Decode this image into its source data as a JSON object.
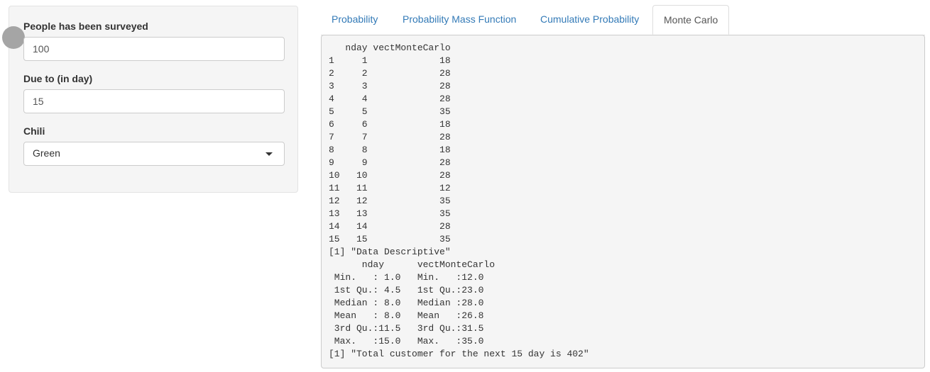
{
  "sidebar": {
    "people_label": "People has been surveyed",
    "people_value": "100",
    "due_label": "Due to (in day)",
    "due_value": "15",
    "chili_label": "Chili",
    "chili_selected": "Green"
  },
  "tabs": [
    {
      "label": "Probability",
      "active": false
    },
    {
      "label": "Probability Mass Function",
      "active": false
    },
    {
      "label": "Cumulative Probability",
      "active": false
    },
    {
      "label": "Monte Carlo",
      "active": true
    }
  ],
  "output": {
    "lines": [
      "   nday vectMonteCarlo",
      "1     1             18",
      "2     2             28",
      "3     3             28",
      "4     4             28",
      "5     5             35",
      "6     6             18",
      "7     7             28",
      "8     8             18",
      "9     9             28",
      "10   10             28",
      "11   11             12",
      "12   12             35",
      "13   13             35",
      "14   14             28",
      "15   15             35",
      "[1] \"Data Descriptive\"",
      "      nday      vectMonteCarlo",
      " Min.   : 1.0   Min.   :12.0  ",
      " 1st Qu.: 4.5   1st Qu.:23.0  ",
      " Median : 8.0   Median :28.0  ",
      " Mean   : 8.0   Mean   :26.8  ",
      " 3rd Qu.:11.5   3rd Qu.:31.5  ",
      " Max.   :15.0   Max.   :35.0  ",
      "[1] \"Total customer for the next 15 day is 402\""
    ]
  },
  "colors": {
    "link": "#337ab7",
    "panel_bg": "#f5f5f5",
    "knob": "#a5a5a5"
  }
}
